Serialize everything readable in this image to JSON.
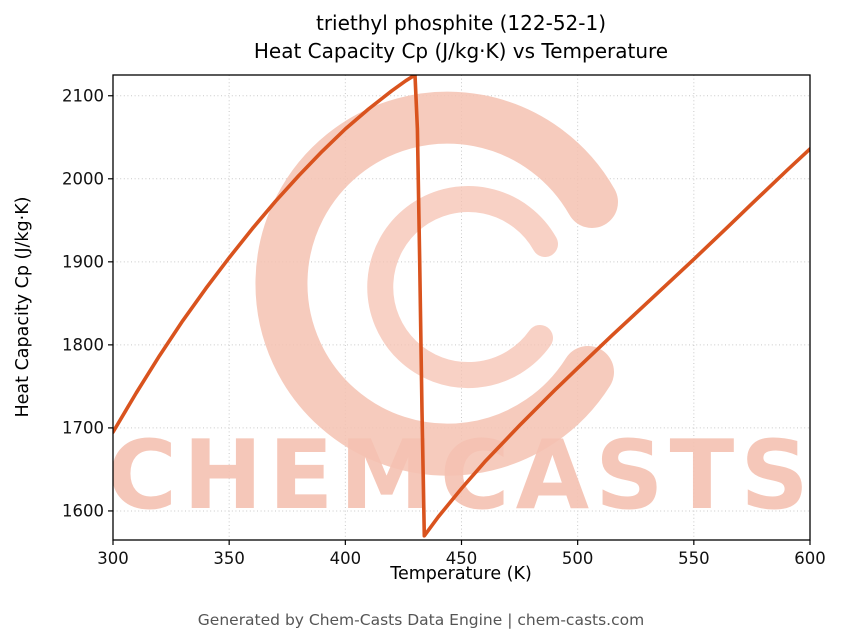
{
  "page": {
    "background": "#ffffff",
    "footer": "Generated by Chem-Casts Data Engine | chem-casts.com"
  },
  "watermark": {
    "text": "CHEMCASTS",
    "logo": "swirl-c-logo",
    "color": "#f5c2b2"
  },
  "chart_data": {
    "type": "line",
    "title_lines": [
      "triethyl phosphite (122-52-1)",
      "Heat Capacity Cp (J/kg·K) vs Temperature"
    ],
    "xlabel": "Temperature (K)",
    "ylabel": "Heat Capacity Cp (J/kg·K)",
    "xlim": [
      300,
      600
    ],
    "ylim": [
      1565,
      2125
    ],
    "xticks": [
      300,
      350,
      400,
      450,
      500,
      550,
      600
    ],
    "yticks": [
      1600,
      1700,
      1800,
      1900,
      2000,
      2100
    ],
    "grid": true,
    "legend": "none",
    "line_color": "#d9531e",
    "line_width": 3.6,
    "series": [
      {
        "name": "Heat Capacity Cp",
        "points": [
          [
            300,
            1695
          ],
          [
            310,
            1742
          ],
          [
            320,
            1787
          ],
          [
            330,
            1829
          ],
          [
            340,
            1868
          ],
          [
            350,
            1905
          ],
          [
            360,
            1940
          ],
          [
            370,
            1973
          ],
          [
            380,
            2004
          ],
          [
            390,
            2033
          ],
          [
            400,
            2060
          ],
          [
            410,
            2084
          ],
          [
            420,
            2106
          ],
          [
            426,
            2118
          ],
          [
            430,
            2125
          ],
          [
            431,
            2060
          ],
          [
            432,
            1900
          ],
          [
            433,
            1720
          ],
          [
            434,
            1570
          ],
          [
            440,
            1593
          ],
          [
            450,
            1627
          ],
          [
            460,
            1659
          ],
          [
            475,
            1703
          ],
          [
            490,
            1745
          ],
          [
            500,
            1772
          ],
          [
            515,
            1812
          ],
          [
            525,
            1838
          ],
          [
            540,
            1877
          ],
          [
            550,
            1903
          ],
          [
            565,
            1943
          ],
          [
            575,
            1970
          ],
          [
            590,
            2010
          ],
          [
            600,
            2036
          ]
        ]
      }
    ]
  }
}
